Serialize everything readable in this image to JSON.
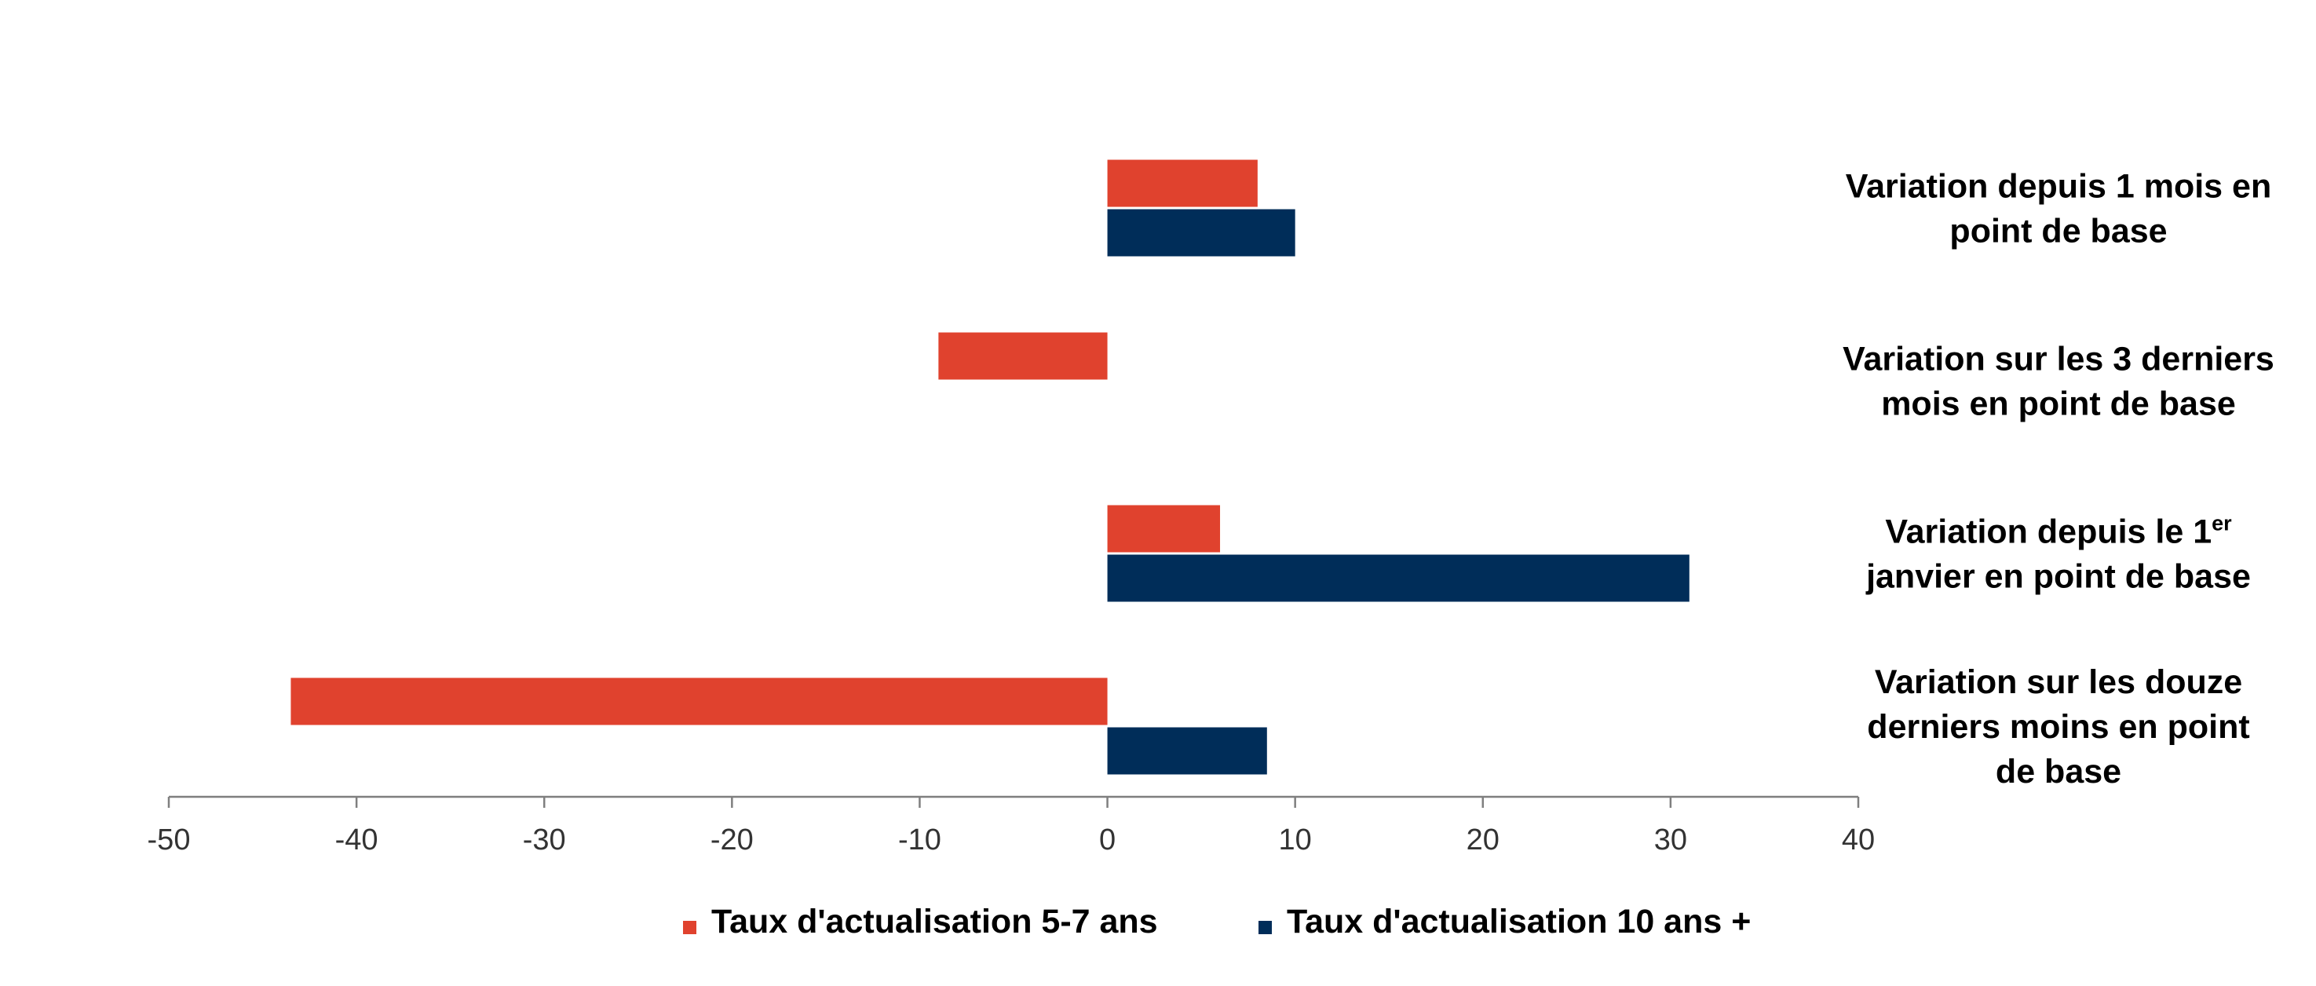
{
  "chart_data": {
    "type": "bar",
    "orientation": "horizontal",
    "categories": [
      {
        "lines": [
          [
            {
              "text": "Variation depuis 1 mois en"
            }
          ],
          [
            {
              "text": "point de base"
            }
          ]
        ]
      },
      {
        "lines": [
          [
            {
              "text": "Variation sur les 3 derniers"
            }
          ],
          [
            {
              "text": "mois en point de base"
            }
          ]
        ]
      },
      {
        "lines": [
          [
            {
              "text": "Variation depuis le 1"
            },
            {
              "text": "er",
              "sup": true
            }
          ],
          [
            {
              "text": "janvier en point de base"
            }
          ]
        ]
      },
      {
        "lines": [
          [
            {
              "text": "Variation sur les douze"
            }
          ],
          [
            {
              "text": "derniers moins en point"
            }
          ],
          [
            {
              "text": "de base"
            }
          ]
        ]
      }
    ],
    "series": [
      {
        "name": "Taux d'actualisation 5-7 ans",
        "color": "#E0422E",
        "values": [
          8,
          -9,
          6,
          -43.5
        ]
      },
      {
        "name": "Taux d'actualisation 10 ans +",
        "color": "#002D59",
        "values": [
          10,
          null,
          31,
          8.5
        ]
      }
    ],
    "xlim": [
      -50,
      40
    ],
    "xticks": [
      "-50",
      "-40",
      "-30",
      "-20",
      "-10",
      "0",
      "10",
      "20",
      "30",
      "40"
    ],
    "grid": false,
    "legend": "bottom"
  }
}
